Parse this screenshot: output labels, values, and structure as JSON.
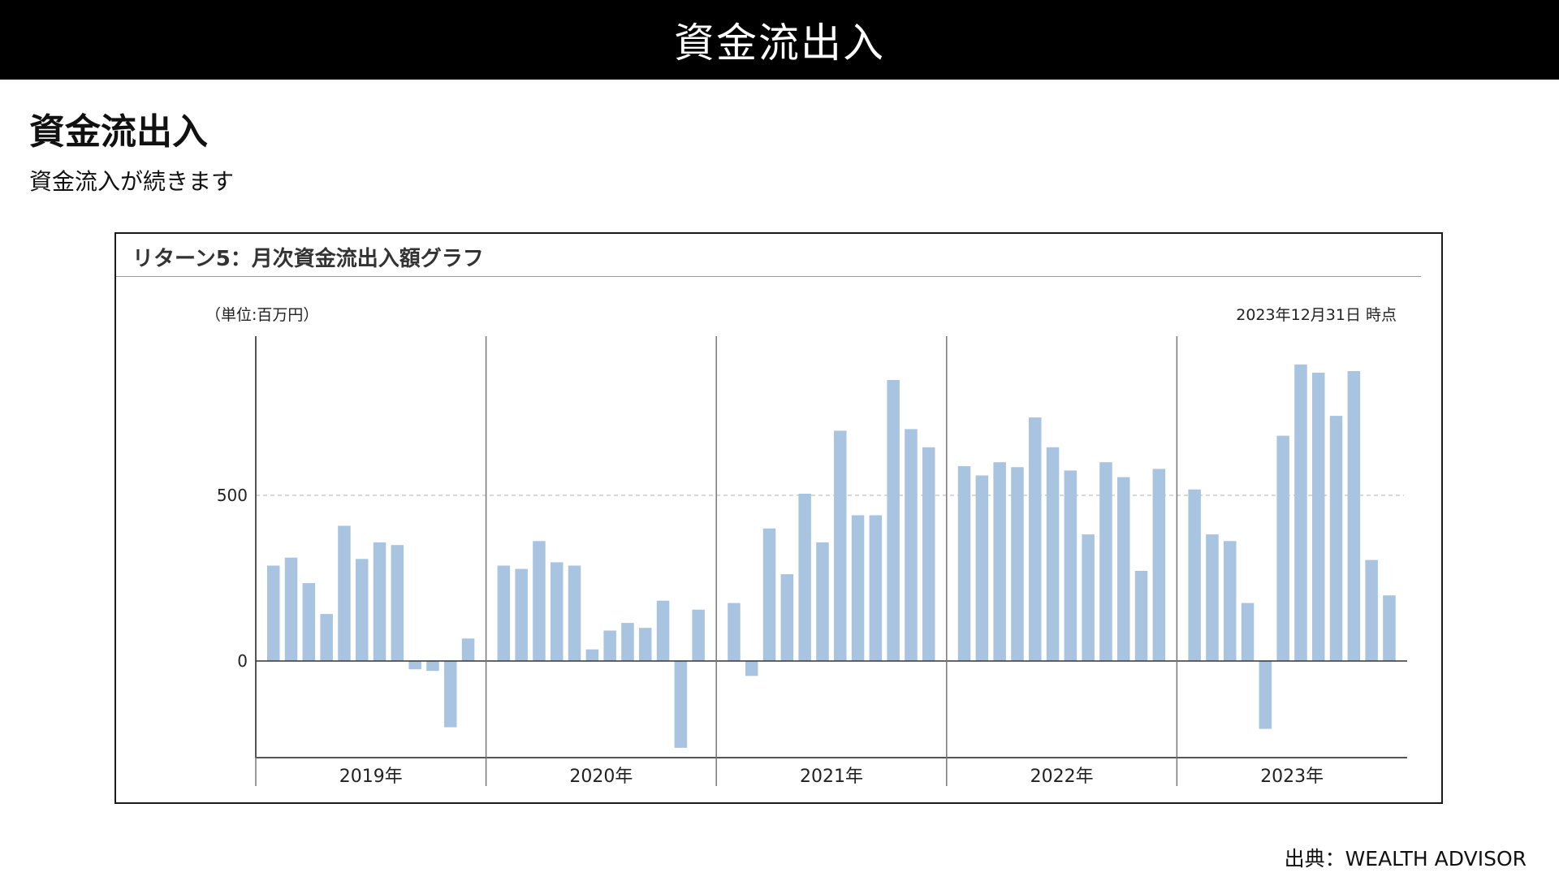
{
  "header": {
    "title": "資金流出入"
  },
  "page": {
    "heading": "資金流出入",
    "subtitle": "資金流入が続きます"
  },
  "chart": {
    "title": "リターン5：月次資金流出入額グラフ",
    "unit_label": "（単位:百万円）",
    "as_of_label": "2023年12月31日 時点"
  },
  "source": {
    "text": "出典：WEALTH ADVISOR"
  },
  "colors": {
    "bar": "#a9c4e0",
    "axis": "#555555",
    "gridline": "#cccccc",
    "header_bg": "#000000"
  },
  "chart_data": {
    "type": "bar",
    "x_groups": [
      "2019年",
      "2020年",
      "2021年",
      "2022年",
      "2023年"
    ],
    "values_by_year": [
      [
        288,
        312,
        235,
        142,
        408,
        308,
        358,
        350,
        -25,
        -30,
        -200,
        68
      ],
      [
        288,
        278,
        362,
        298,
        288,
        35,
        92,
        115,
        100,
        182,
        -262,
        155
      ],
      [
        175,
        -45,
        400,
        262,
        505,
        358,
        695,
        440,
        440,
        848,
        700,
        645
      ],
      [
        588,
        560,
        600,
        585,
        735,
        645,
        575,
        382,
        600,
        555,
        272,
        580
      ],
      [
        518,
        382,
        362,
        175,
        -205,
        680,
        895,
        870,
        740,
        875,
        305,
        198
      ]
    ],
    "y_ticks": [
      0,
      500
    ],
    "ylim": [
      -290,
      980
    ],
    "grid": "horizontal dashed at 500",
    "xlabel": "",
    "ylabel": ""
  }
}
